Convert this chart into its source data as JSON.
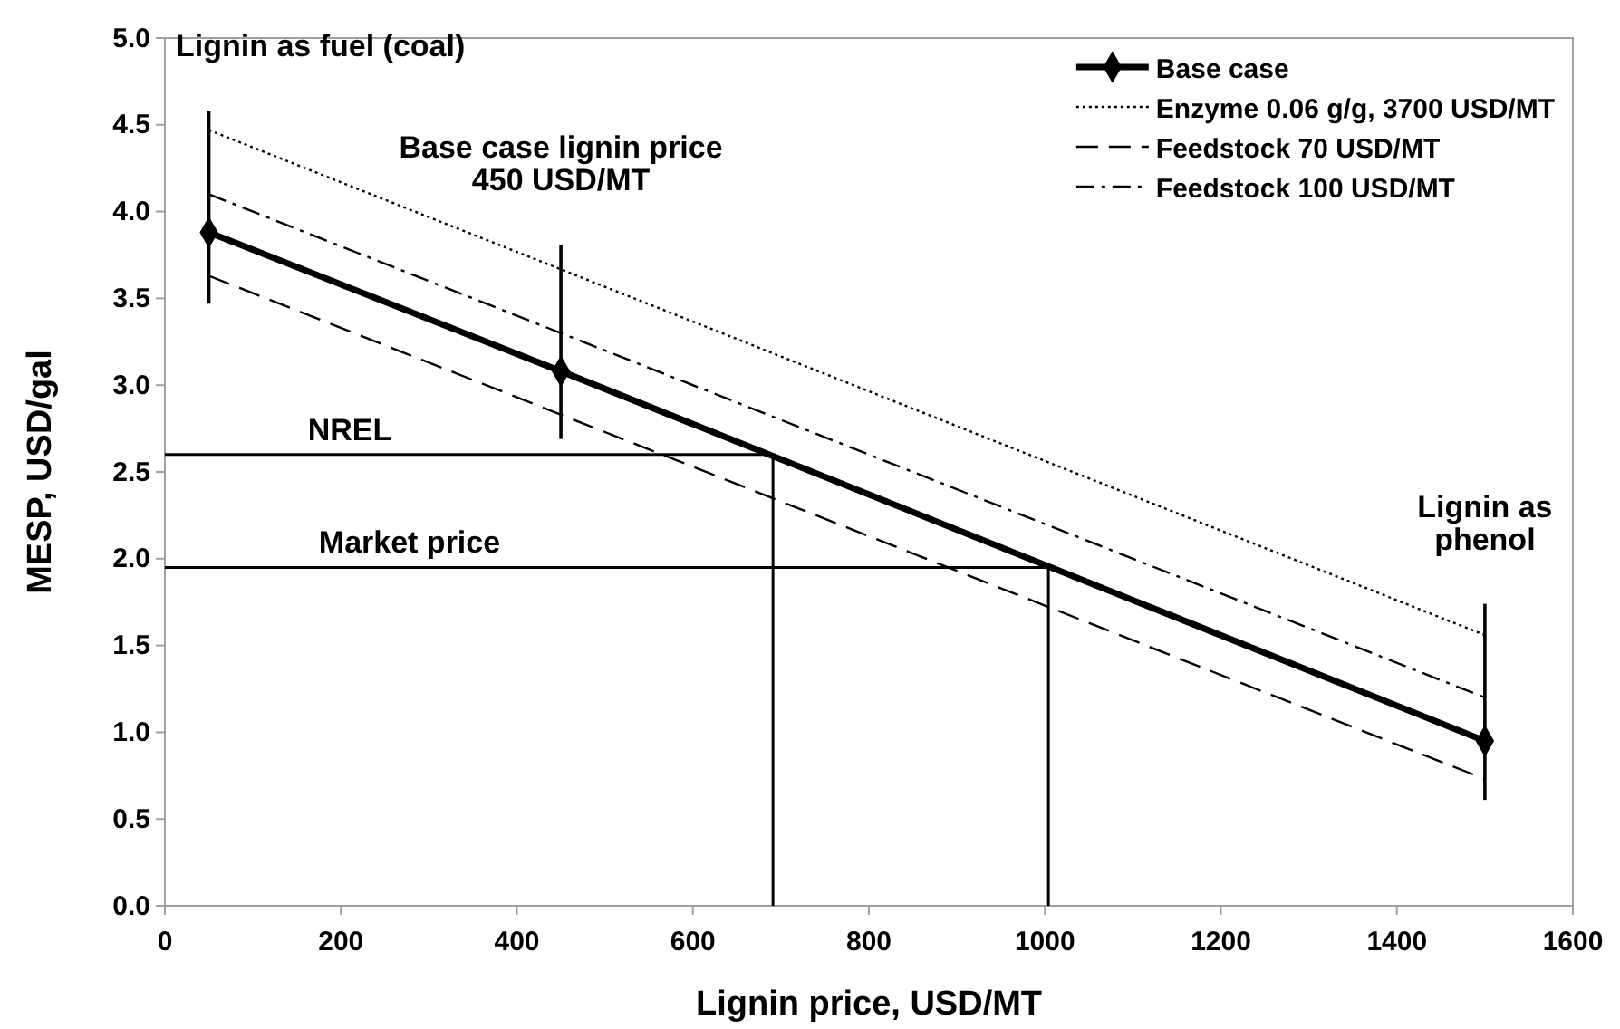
{
  "chart_data": {
    "type": "line",
    "xlabel": "Lignin price, USD/MT",
    "ylabel": "MESP, USD/gal",
    "xlim": [
      0,
      1600
    ],
    "xticks": [
      0,
      200,
      400,
      600,
      800,
      1000,
      1200,
      1400,
      1600
    ],
    "ylim": [
      0,
      5
    ],
    "yticks": [
      {
        "value": 0,
        "label": "0.0"
      },
      {
        "value": 0.5,
        "label": "0.5"
      },
      {
        "value": 1,
        "label": "1.0"
      },
      {
        "value": 1.5,
        "label": "1.5"
      },
      {
        "value": 2,
        "label": "2.0"
      },
      {
        "value": 2.5,
        "label": "2.5"
      },
      {
        "value": 3,
        "label": "3.0"
      },
      {
        "value": 3.5,
        "label": "3.5"
      },
      {
        "value": 4,
        "label": "4.0"
      },
      {
        "value": 4.5,
        "label": "4.5"
      },
      {
        "value": 5,
        "label": "5.0"
      }
    ],
    "grid": false,
    "legend": "top right",
    "series": [
      {
        "name": "Base case",
        "color": "#000000",
        "x": [
          50,
          450,
          1500
        ],
        "values": [
          3.88,
          3.08,
          0.95
        ],
        "marker": "diamond",
        "line_style": "solid",
        "errors": [
          [
            3.47,
            4.58
          ],
          [
            2.69,
            3.81
          ],
          [
            0.61,
            1.74
          ]
        ]
      },
      {
        "name": "Enzyme 0.06 g/g, 3700 USD/MT",
        "color": "#000000",
        "x": [
          50,
          1500
        ],
        "values": [
          4.47,
          1.56
        ],
        "marker": "none",
        "line_style": "dotted"
      },
      {
        "name": "Feedstock 70 USD/MT",
        "color": "#000000",
        "x": [
          50,
          1500
        ],
        "values": [
          3.63,
          0.73
        ],
        "marker": "none",
        "line_style": "dashed"
      },
      {
        "name": "Feedstock 100 USD/MT",
        "color": "#000000",
        "x": [
          50,
          1500
        ],
        "values": [
          4.1,
          1.2
        ],
        "marker": "none",
        "line_style": "dashdot"
      },
      {
        "color": "#000000",
        "x": [
          0,
          691,
          691
        ],
        "values": [
          2.6,
          2.6,
          0
        ],
        "marker": "none",
        "line_style": "solid"
      },
      {
        "color": "#000000",
        "x": [
          0,
          1004,
          1004
        ],
        "values": [
          1.95,
          1.95,
          0
        ],
        "marker": "none",
        "line_style": "solid"
      }
    ],
    "annotations": [
      {
        "text": "Lignin as fuel (coal)",
        "x": 50,
        "y": 4.58
      },
      {
        "text": "Base case lignin price\n450 USD/MT",
        "x": 450,
        "y": 3.81
      },
      {
        "text": "Lignin as phenol",
        "x": 1500,
        "y": 1.74
      },
      {
        "text": "NREL",
        "x": 210,
        "y": 2.6
      },
      {
        "text": "Market price",
        "x": 278,
        "y": 1.95
      }
    ]
  }
}
